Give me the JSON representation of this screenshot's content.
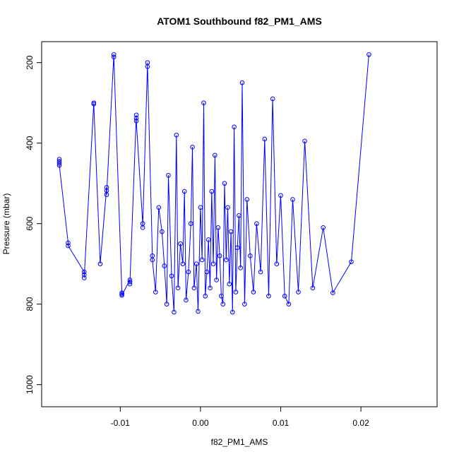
{
  "chart_data": {
    "type": "line",
    "title": "ATOM1 Southbound f82_PM1_AMS",
    "xlabel": "f82_PM1_AMS",
    "ylabel": "Pressure (mbar)",
    "xlim": [
      -0.0198,
      0.0295
    ],
    "ylim": [
      1055,
      148
    ],
    "y_reversed": true,
    "grid": false,
    "marker": "open-circle",
    "color": "#0000ff",
    "x_ticks": [
      -0.01,
      0.0,
      0.01,
      0.02
    ],
    "x_tick_labels": [
      "-0.01",
      "0.00",
      "0.01",
      "0.02"
    ],
    "y_ticks": [
      200,
      400,
      600,
      800,
      1000
    ],
    "y_tick_labels": [
      "200",
      "400",
      "600",
      "800",
      "1000"
    ],
    "series": [
      {
        "x": [
          -0.0176,
          -0.0176,
          -0.0176,
          -0.0176,
          -0.0165,
          -0.0165,
          -0.0145,
          -0.0145,
          -0.0145,
          -0.0133,
          -0.0133,
          -0.0125,
          -0.0117,
          -0.0117,
          -0.0117,
          -0.0108,
          -0.0108,
          -0.0098,
          -0.0098,
          -0.0098,
          -0.0088,
          -0.0088,
          -0.0088,
          -0.008,
          -0.008,
          -0.008,
          -0.0072,
          -0.0072,
          -0.0066,
          -0.0066,
          -0.006,
          -0.006,
          -0.0056,
          -0.0052,
          -0.0048,
          -0.0045,
          -0.0042,
          -0.004,
          -0.0036,
          -0.0033,
          -0.003,
          -0.0028,
          -0.0025,
          -0.0022,
          -0.002,
          -0.0018,
          -0.0015,
          -0.0012,
          -0.001,
          -0.0008,
          -0.0005,
          -0.0003,
          0.0,
          0.0002,
          0.0004,
          0.0006,
          0.0008,
          0.001,
          0.0012,
          0.0014,
          0.0016,
          0.0018,
          0.002,
          0.0022,
          0.0024,
          0.0026,
          0.0028,
          0.003,
          0.0032,
          0.0034,
          0.0036,
          0.0038,
          0.004,
          0.0042,
          0.0044,
          0.0046,
          0.0048,
          0.005,
          0.0052,
          0.0055,
          0.0058,
          0.0062,
          0.0066,
          0.007,
          0.0075,
          0.008,
          0.0085,
          0.009,
          0.0095,
          0.01,
          0.0105,
          0.011,
          0.0115,
          0.0122,
          0.013,
          0.014,
          0.0153,
          0.0165,
          0.0188,
          0.021
        ],
        "y": [
          440,
          445,
          450,
          455,
          648,
          655,
          720,
          727,
          735,
          300,
          303,
          700,
          510,
          518,
          528,
          180,
          186,
          772,
          775,
          778,
          740,
          745,
          750,
          330,
          338,
          345,
          600,
          610,
          200,
          210,
          680,
          690,
          770,
          560,
          620,
          705,
          800,
          480,
          730,
          820,
          380,
          760,
          650,
          700,
          520,
          790,
          720,
          600,
          410,
          760,
          700,
          818,
          560,
          690,
          300,
          780,
          720,
          640,
          760,
          520,
          700,
          430,
          740,
          610,
          680,
          780,
          800,
          500,
          690,
          560,
          750,
          620,
          820,
          360,
          770,
          660,
          580,
          710,
          250,
          800,
          540,
          680,
          770,
          600,
          720,
          390,
          780,
          290,
          700,
          530,
          780,
          800,
          540,
          770,
          395,
          760,
          610,
          772,
          695,
          180
        ]
      }
    ]
  }
}
